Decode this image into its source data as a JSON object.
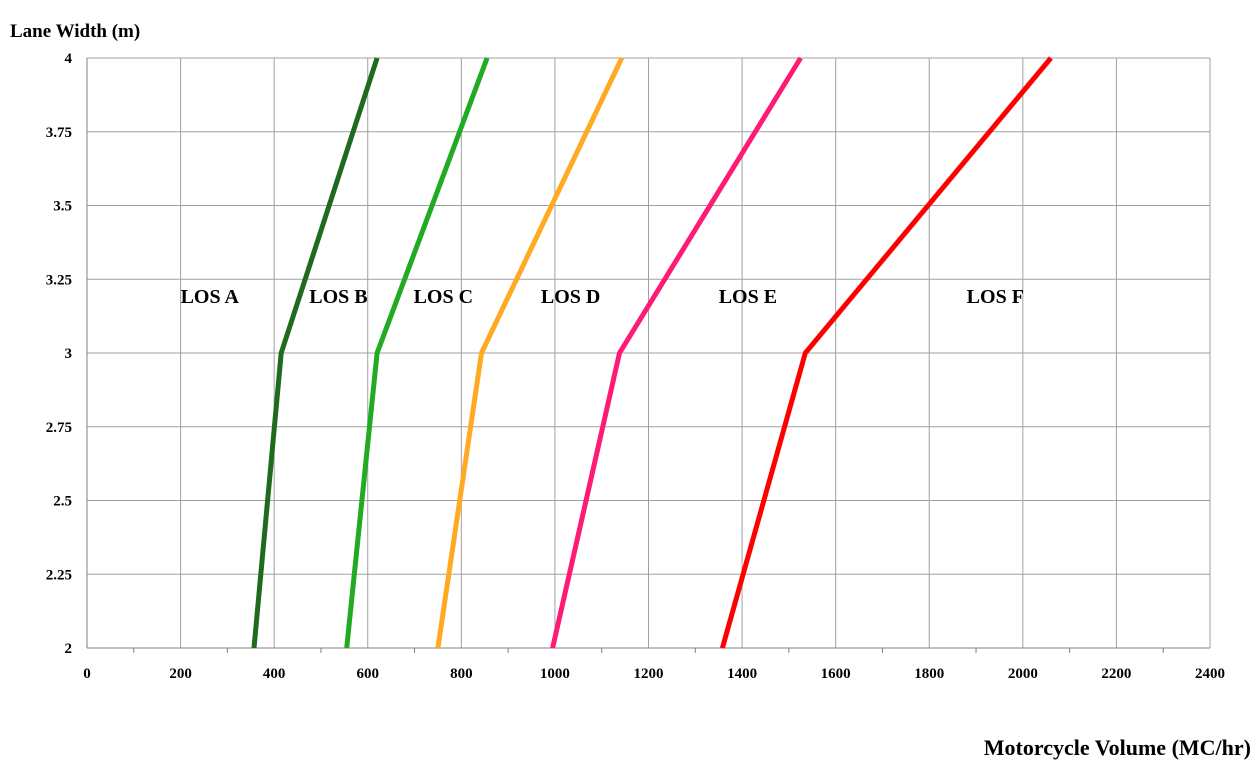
{
  "chart_data": {
    "type": "line",
    "xlabel": "Motorcycle Volume (MC/hr)",
    "ylabel": "Lane Width (m)",
    "xlim": [
      0,
      2400
    ],
    "ylim": [
      2,
      4
    ],
    "xticks": [
      "0",
      "200",
      "400",
      "600",
      "800",
      "1000",
      "1200",
      "1400",
      "1600",
      "1800",
      "2000",
      "2200",
      "2400"
    ],
    "yticks": [
      "2",
      "2.25",
      "2.5",
      "2.75",
      "3",
      "3.25",
      "3.5",
      "3.75",
      "4"
    ],
    "grid": true,
    "series": [
      {
        "color": "#1e6b1e",
        "points": [
          [
            357,
            2
          ],
          [
            415,
            3
          ],
          [
            620,
            4
          ]
        ]
      },
      {
        "color": "#22aa22",
        "points": [
          [
            555,
            2
          ],
          [
            620,
            3
          ],
          [
            855,
            4
          ]
        ]
      },
      {
        "color": "#ffaa22",
        "points": [
          [
            750,
            2
          ],
          [
            843,
            3
          ],
          [
            1143,
            4
          ]
        ]
      },
      {
        "color": "#ff1a75",
        "points": [
          [
            995,
            2
          ],
          [
            1138,
            3
          ],
          [
            1525,
            4
          ]
        ]
      },
      {
        "color": "#ff0000",
        "points": [
          [
            1358,
            2
          ],
          [
            1535,
            3
          ],
          [
            2060,
            4
          ]
        ]
      }
    ],
    "region_labels": [
      {
        "text": "LOS A",
        "x": 200,
        "y": 3.17
      },
      {
        "text": "LOS B",
        "x": 475,
        "y": 3.17
      },
      {
        "text": "LOS C",
        "x": 698,
        "y": 3.17
      },
      {
        "text": "LOS D",
        "x": 970,
        "y": 3.17
      },
      {
        "text": "LOS E",
        "x": 1350,
        "y": 3.17
      },
      {
        "text": "LOS F",
        "x": 1880,
        "y": 3.17
      }
    ]
  }
}
